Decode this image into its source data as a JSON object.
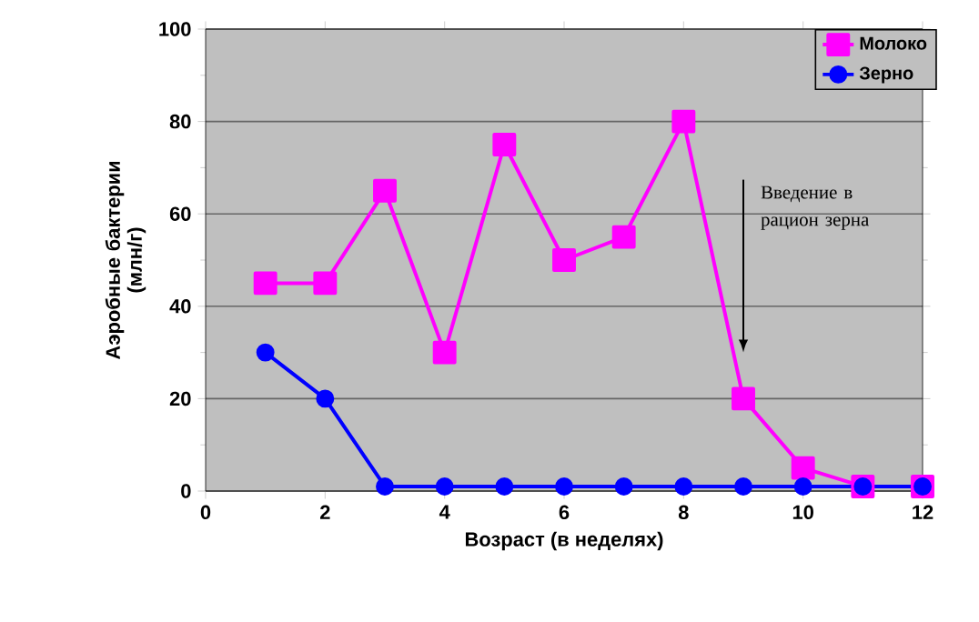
{
  "chart_data": {
    "type": "line",
    "xlabel": "Возраст (в неделях)",
    "ylabel": "Аэробные бактерии\n(млн/г)",
    "x": [
      1,
      2,
      3,
      4,
      5,
      6,
      7,
      8,
      9,
      10,
      11,
      12
    ],
    "xlim": [
      0,
      12
    ],
    "xticks": [
      0,
      2,
      4,
      6,
      8,
      10,
      12
    ],
    "ylim": [
      0,
      100
    ],
    "yticks": [
      0,
      20,
      40,
      60,
      80,
      100
    ],
    "grid": "y",
    "legend": "top right",
    "series": [
      {
        "name": "Молоко",
        "color": "#ff00ff",
        "marker": "square",
        "values": [
          45,
          45,
          65,
          30,
          75,
          50,
          55,
          80,
          20,
          5,
          1,
          1
        ]
      },
      {
        "name": "Зерно",
        "color": "#0000ff",
        "marker": "circle",
        "values": [
          30,
          20,
          1,
          1,
          1,
          1,
          1,
          1,
          1,
          1,
          1,
          1
        ]
      }
    ],
    "annotations": [
      {
        "text": "Введение в рацион зерна",
        "x": 9,
        "y": 30
      }
    ]
  }
}
